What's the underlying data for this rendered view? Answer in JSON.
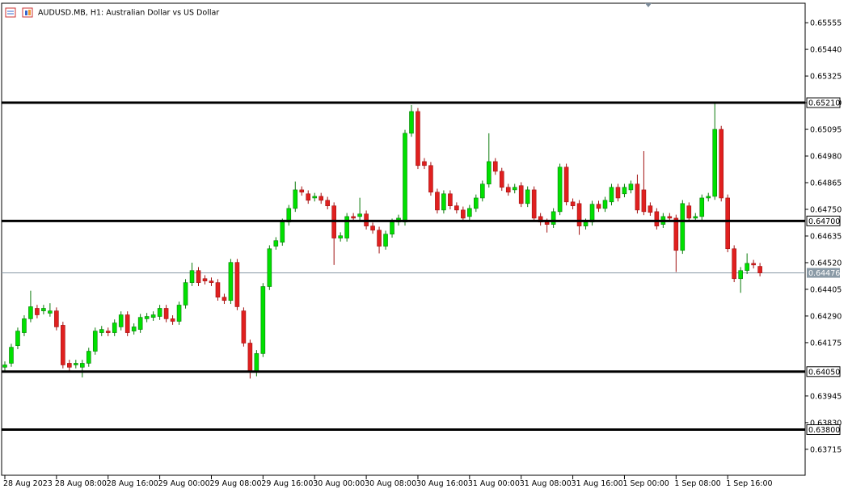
{
  "chart_data": {
    "type": "candlestick",
    "title": "AUDUSD.MB, H1:  Australian Dollar vs US Dollar",
    "up_color": "#00e000",
    "down_color": "#e0201f",
    "open": [
      0.64069,
      0.64086,
      0.64162,
      0.64218,
      0.64278,
      0.64323,
      0.64312,
      0.64302,
      0.64312,
      0.6425,
      0.64086,
      0.64079,
      0.64069,
      0.64086,
      0.64138,
      0.64218,
      0.64225,
      0.64218,
      0.64243,
      0.64295,
      0.64225,
      0.64232,
      0.64278,
      0.64284,
      0.64288,
      0.64323,
      0.64278,
      0.64267,
      0.64337,
      0.64434,
      0.64486,
      0.64451,
      0.64441,
      0.64434,
      0.64371,
      0.64357,
      0.64521,
      0.64312,
      0.64173,
      0.64052,
      0.64128,
      0.64417,
      0.64591,
      0.64608,
      0.64695,
      0.64754,
      0.64834,
      0.64817,
      0.64799,
      0.64806,
      0.64789,
      0.64765,
      0.64626,
      0.64626,
      0.64719,
      0.64719,
      0.6473,
      0.64678,
      0.6466,
      0.64591,
      0.64643,
      0.64695,
      0.64695,
      0.65078,
      0.65172,
      0.64956,
      0.64939,
      0.64824,
      0.64747,
      0.64817,
      0.64765,
      0.64747,
      0.64719,
      0.64754,
      0.64799,
      0.64859,
      0.64956,
      0.64914,
      0.64845,
      0.64834,
      0.64852,
      0.64775,
      0.64834,
      0.64719,
      0.64695,
      0.64685,
      0.6474,
      0.64932,
      0.64782,
      0.64775,
      0.64678,
      0.64695,
      0.64772,
      0.64754,
      0.64782,
      0.64845,
      0.64817,
      0.64834,
      0.64859,
      0.64834,
      0.64765,
      0.6474,
      0.64685,
      0.64719,
      0.64712,
      0.64573,
      0.64765,
      0.64712,
      0.64719,
      0.64799,
      0.64806,
      0.65095,
      0.64799,
      0.6458,
      0.64451,
      0.64486,
      0.64517,
      0.64504
    ],
    "high": [
      0.64094,
      0.6417,
      0.6424,
      0.64293,
      0.64399,
      0.64338,
      0.64338,
      0.64345,
      0.64327,
      0.64265,
      0.64101,
      0.64101,
      0.64101,
      0.64153,
      0.6424,
      0.64247,
      0.6424,
      0.64275,
      0.6431,
      0.6431,
      0.64258,
      0.64299,
      0.64303,
      0.6431,
      0.64338,
      0.64338,
      0.64293,
      0.64352,
      0.64449,
      0.6452,
      0.64501,
      0.64466,
      0.64456,
      0.64449,
      0.64386,
      0.64536,
      0.64536,
      0.64327,
      0.64188,
      0.64143,
      0.64432,
      0.64595,
      0.6463,
      0.6471,
      0.64769,
      0.6487,
      0.64849,
      0.64832,
      0.64821,
      0.64821,
      0.64804,
      0.6478,
      0.64651,
      0.64734,
      0.64734,
      0.648,
      0.64745,
      0.64693,
      0.64675,
      0.64658,
      0.6471,
      0.64727,
      0.65093,
      0.652,
      0.65187,
      0.64971,
      0.64954,
      0.64839,
      0.64832,
      0.64832,
      0.6478,
      0.64762,
      0.64769,
      0.64814,
      0.64874,
      0.65078,
      0.64971,
      0.64929,
      0.6486,
      0.6486,
      0.64867,
      0.64849,
      0.64849,
      0.64734,
      0.6471,
      0.64755,
      0.64947,
      0.64947,
      0.64797,
      0.6479,
      0.6471,
      0.64787,
      0.64787,
      0.64804,
      0.6486,
      0.6486,
      0.6486,
      0.64874,
      0.649,
      0.65001,
      0.6478,
      0.64755,
      0.64734,
      0.64734,
      0.64727,
      0.6479,
      0.6478,
      0.64734,
      0.64814,
      0.64821,
      0.6521,
      0.6511,
      0.64814,
      0.64595,
      0.64501,
      0.6456,
      0.64532,
      0.64519
    ],
    "low": [
      0.64054,
      0.64071,
      0.64147,
      0.64203,
      0.64263,
      0.6428,
      0.64297,
      0.64287,
      0.64228,
      0.64064,
      0.64054,
      0.64064,
      0.64025,
      0.64071,
      0.64123,
      0.64203,
      0.64203,
      0.64203,
      0.64228,
      0.64203,
      0.6421,
      0.64217,
      0.64263,
      0.64269,
      0.64273,
      0.64263,
      0.64252,
      0.64252,
      0.64322,
      0.64419,
      0.64419,
      0.64426,
      0.64419,
      0.64356,
      0.64342,
      0.64342,
      0.64315,
      0.64158,
      0.6402,
      0.6403,
      0.64113,
      0.64402,
      0.64576,
      0.64593,
      0.6468,
      0.64739,
      0.64809,
      0.64774,
      0.64784,
      0.64774,
      0.6475,
      0.6451,
      0.64611,
      0.64611,
      0.64697,
      0.64704,
      0.64663,
      0.64645,
      0.6456,
      0.64576,
      0.64628,
      0.6468,
      0.6468,
      0.65063,
      0.64924,
      0.64924,
      0.64809,
      0.64732,
      0.64732,
      0.6475,
      0.64732,
      0.64697,
      0.64704,
      0.64739,
      0.64784,
      0.64844,
      0.64899,
      0.6483,
      0.64809,
      0.64819,
      0.6476,
      0.6476,
      0.64697,
      0.6468,
      0.6465,
      0.6467,
      0.64725,
      0.64767,
      0.6475,
      0.6464,
      0.64663,
      0.6468,
      0.64739,
      0.64739,
      0.64767,
      0.64784,
      0.64802,
      0.64819,
      0.64732,
      0.64725,
      0.64722,
      0.64663,
      0.6467,
      0.64697,
      0.6448,
      0.64558,
      0.64697,
      0.64697,
      0.64704,
      0.64784,
      0.64791,
      0.64784,
      0.64565,
      0.64436,
      0.6439,
      0.64471,
      0.64495,
      0.64461
    ],
    "close": [
      0.64079,
      0.64155,
      0.64225,
      0.64278,
      0.6433,
      0.64295,
      0.64323,
      0.64312,
      0.64243,
      0.64079,
      0.64069,
      0.64086,
      0.64086,
      0.64138,
      0.64225,
      0.64232,
      0.64218,
      0.6426,
      0.64295,
      0.64218,
      0.64243,
      0.64284,
      0.64288,
      0.64295,
      0.64323,
      0.64278,
      0.64267,
      0.64337,
      0.64434,
      0.64486,
      0.64434,
      0.64441,
      0.64434,
      0.64371,
      0.64357,
      0.64521,
      0.6433,
      0.64173,
      0.64052,
      0.64128,
      0.64417,
      0.6458,
      0.64615,
      0.64695,
      0.64754,
      0.64834,
      0.64824,
      0.64789,
      0.64806,
      0.64789,
      0.64765,
      0.64626,
      0.64636,
      0.64719,
      0.64712,
      0.6473,
      0.64678,
      0.6466,
      0.64591,
      0.64643,
      0.64695,
      0.64712,
      0.65078,
      0.65172,
      0.64939,
      0.64939,
      0.64824,
      0.64747,
      0.64817,
      0.64765,
      0.64747,
      0.64712,
      0.64754,
      0.64799,
      0.64859,
      0.64956,
      0.64914,
      0.64845,
      0.64824,
      0.64845,
      0.64775,
      0.64834,
      0.64712,
      0.64695,
      0.64685,
      0.6474,
      0.64932,
      0.64782,
      0.64765,
      0.64678,
      0.64695,
      0.64772,
      0.64754,
      0.64789,
      0.64845,
      0.64799,
      0.64845,
      0.64859,
      0.64747,
      0.6474,
      0.64737,
      0.64678,
      0.64719,
      0.64712,
      0.64573,
      0.64775,
      0.64712,
      0.64719,
      0.64799,
      0.64806,
      0.65095,
      0.64799,
      0.6458,
      0.64451,
      0.64486,
      0.64517,
      0.6451,
      0.64476
    ],
    "xlim": [
      -0.5,
      124
    ],
    "xticks": [
      {
        "value": 0,
        "label": "28 Aug 2023"
      },
      {
        "value": 8,
        "label": "28 Aug 08:00"
      },
      {
        "value": 16,
        "label": "28 Aug 16:00"
      },
      {
        "value": 24,
        "label": "29 Aug 00:00"
      },
      {
        "value": 32,
        "label": "29 Aug 08:00"
      },
      {
        "value": 40,
        "label": "29 Aug 16:00"
      },
      {
        "value": 48,
        "label": "30 Aug 00:00"
      },
      {
        "value": 56,
        "label": "30 Aug 08:00"
      },
      {
        "value": 64,
        "label": "30 Aug 16:00"
      },
      {
        "value": 72,
        "label": "31 Aug 00:00"
      },
      {
        "value": 80,
        "label": "31 Aug 08:00"
      },
      {
        "value": 88,
        "label": "31 Aug 16:00"
      },
      {
        "value": 96,
        "label": "1 Sep 00:00"
      },
      {
        "value": 104,
        "label": "1 Sep 08:00"
      },
      {
        "value": 112,
        "label": "1 Sep 16:00"
      }
    ],
    "ylim": [
      0.63603,
      0.65639
    ],
    "yticks": [
      0.65555,
      {
        "value": 0.6544,
        "label": "0.65440"
      },
      0.65325,
      {
        "value": 0.6521,
        "label": "0.65210"
      },
      0.65095,
      {
        "value": 0.6498,
        "label": "0.64980"
      },
      0.64865,
      {
        "value": 0.6475,
        "label": "0.64750"
      },
      0.64635,
      {
        "value": 0.6452,
        "label": "0.64520"
      },
      0.64405,
      {
        "value": 0.6429,
        "label": "0.64290"
      },
      0.64175,
      0.63945,
      {
        "value": 0.6383,
        "label": "0.63830"
      },
      0.63715
    ],
    "levels": [
      {
        "value": 0.6521,
        "label": "0.65210"
      },
      {
        "value": 0.647,
        "label": "0.64700"
      },
      {
        "value": 0.6405,
        "label": "0.64050"
      },
      {
        "value": 0.638,
        "label": "0.63800"
      }
    ],
    "level_color": "#000000",
    "current_price": 0.64476,
    "current_price_color": "#8a9aa6"
  }
}
